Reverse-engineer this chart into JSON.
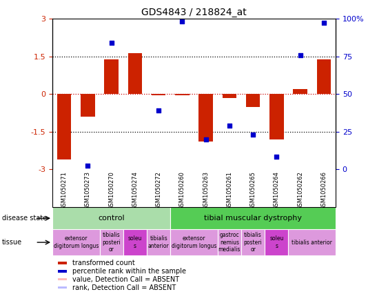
{
  "title": "GDS4843 / 218824_at",
  "samples": [
    "GSM1050271",
    "GSM1050273",
    "GSM1050270",
    "GSM1050274",
    "GSM1050272",
    "GSM1050260",
    "GSM1050263",
    "GSM1050261",
    "GSM1050265",
    "GSM1050264",
    "GSM1050262",
    "GSM1050266"
  ],
  "bar_values": [
    -2.6,
    -0.9,
    1.4,
    1.65,
    -0.05,
    -0.05,
    -1.9,
    -0.15,
    -0.5,
    -1.8,
    0.2,
    1.4
  ],
  "dot_values_y": [
    null,
    -2.85,
    2.05,
    null,
    -0.65,
    2.9,
    -1.8,
    -1.25,
    -1.6,
    -2.5,
    1.55,
    2.85
  ],
  "ylim": [
    -3,
    3
  ],
  "yticks": [
    -3,
    -1.5,
    0,
    1.5,
    3
  ],
  "ytick_labels": [
    "-3",
    "-1.5",
    "0",
    "1.5",
    "3"
  ],
  "y2ticks_val": [
    0,
    25,
    50,
    75,
    100
  ],
  "y2tick_labels": [
    "0",
    "25",
    "50",
    "75",
    "100%"
  ],
  "bar_color": "#CC2200",
  "dot_color": "#0000CC",
  "disease_state_groups": [
    {
      "label": "control",
      "start": 0,
      "end": 4,
      "color": "#AADDAA"
    },
    {
      "label": "tibial muscular dystrophy",
      "start": 5,
      "end": 11,
      "color": "#55CC55"
    }
  ],
  "tissue_groups": [
    {
      "label": "extensor\ndigitorum longus",
      "start": 0,
      "end": 1,
      "color": "#DD99DD"
    },
    {
      "label": "tibialis\nposteri\nor",
      "start": 2,
      "end": 2,
      "color": "#DD99DD"
    },
    {
      "label": "soleu\ns",
      "start": 3,
      "end": 3,
      "color": "#CC44CC"
    },
    {
      "label": "tibialis\nanterior",
      "start": 4,
      "end": 4,
      "color": "#DD99DD"
    },
    {
      "label": "extensor\ndigitorum longus",
      "start": 5,
      "end": 6,
      "color": "#DD99DD"
    },
    {
      "label": "gastroc\nnemius\nmedialis",
      "start": 7,
      "end": 7,
      "color": "#DD99DD"
    },
    {
      "label": "tibialis\nposteri\nor",
      "start": 8,
      "end": 8,
      "color": "#DD99DD"
    },
    {
      "label": "soleu\ns",
      "start": 9,
      "end": 9,
      "color": "#CC44CC"
    },
    {
      "label": "tibialis anterior",
      "start": 10,
      "end": 11,
      "color": "#DD99DD"
    }
  ],
  "xtick_bg_color": "#C8C8C8",
  "legend_items": [
    {
      "label": "transformed count",
      "color": "#CC2200"
    },
    {
      "label": "percentile rank within the sample",
      "color": "#0000CC"
    },
    {
      "label": "value, Detection Call = ABSENT",
      "color": "#FFBBBB"
    },
    {
      "label": "rank, Detection Call = ABSENT",
      "color": "#BBBBFF"
    }
  ]
}
